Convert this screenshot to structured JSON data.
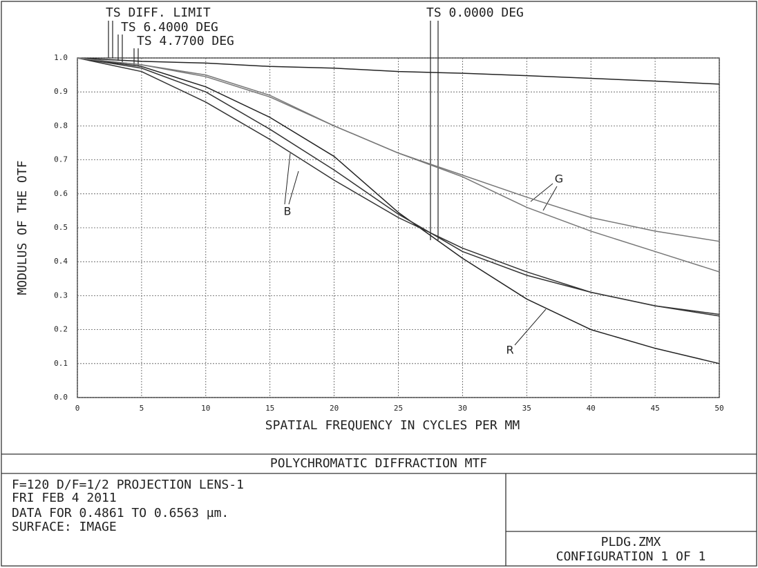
{
  "chart_data": {
    "type": "line",
    "title": "POLYCHROMATIC DIFFRACTION MTF",
    "x_label": "SPATIAL FREQUENCY IN CYCLES PER MM",
    "y_label": "MODULUS OF THE OTF",
    "legend": [
      "TS DIFF. LIMIT",
      "TS 6.4000 DEG",
      "TS 4.7700 DEG",
      "TS 0.0000 DEG"
    ],
    "annotations": [
      "B",
      "G",
      "R"
    ],
    "notes": [
      "F=120  D/F=1/2 PROJECTION LENS-1",
      "FRI FEB 4 2011",
      "DATA FOR 0.4861 TO 0.6563 µm.",
      "SURFACE: IMAGE"
    ],
    "file": "PLDG.ZMX",
    "configuration": "CONFIGURATION 1 OF 1",
    "x": [
      0,
      5,
      10,
      15,
      20,
      25,
      30,
      35,
      40,
      45,
      50
    ],
    "series": [
      {
        "color": "#222222",
        "values": [
          1.0,
          0.99,
          0.985,
          0.975,
          0.97,
          0.96,
          0.955,
          0.948,
          0.94,
          0.932,
          0.923
        ]
      },
      {
        "color": "#222222",
        "values": [
          1.0,
          0.975,
          0.915,
          0.825,
          0.71,
          0.545,
          0.41,
          0.29,
          0.2,
          0.145,
          0.1
        ]
      },
      {
        "color": "#333333",
        "values": [
          1.0,
          0.97,
          0.9,
          0.79,
          0.67,
          0.54,
          0.43,
          0.36,
          0.31,
          0.27,
          0.245
        ]
      },
      {
        "color": "#333333",
        "values": [
          1.0,
          0.96,
          0.87,
          0.76,
          0.64,
          0.53,
          0.44,
          0.37,
          0.31,
          0.27,
          0.24
        ]
      },
      {
        "color": "#777777",
        "values": [
          1.0,
          0.98,
          0.95,
          0.89,
          0.8,
          0.72,
          0.655,
          0.59,
          0.53,
          0.49,
          0.46
        ]
      },
      {
        "color": "#777777",
        "values": [
          1.0,
          0.98,
          0.945,
          0.885,
          0.8,
          0.72,
          0.65,
          0.56,
          0.49,
          0.43,
          0.37
        ]
      }
    ],
    "xlim": [
      0,
      50
    ],
    "ylim": [
      0,
      1
    ],
    "xticks": [
      0,
      5,
      10,
      15,
      20,
      25,
      30,
      35,
      40,
      45,
      50
    ],
    "yticks": [
      {
        "value": 0,
        "label": "0.0"
      },
      0.1,
      0.2,
      0.3,
      0.4,
      0.5,
      0.6,
      0.7,
      0.8,
      0.9,
      {
        "value": 1,
        "label": "1.0"
      }
    ],
    "grid": true
  }
}
